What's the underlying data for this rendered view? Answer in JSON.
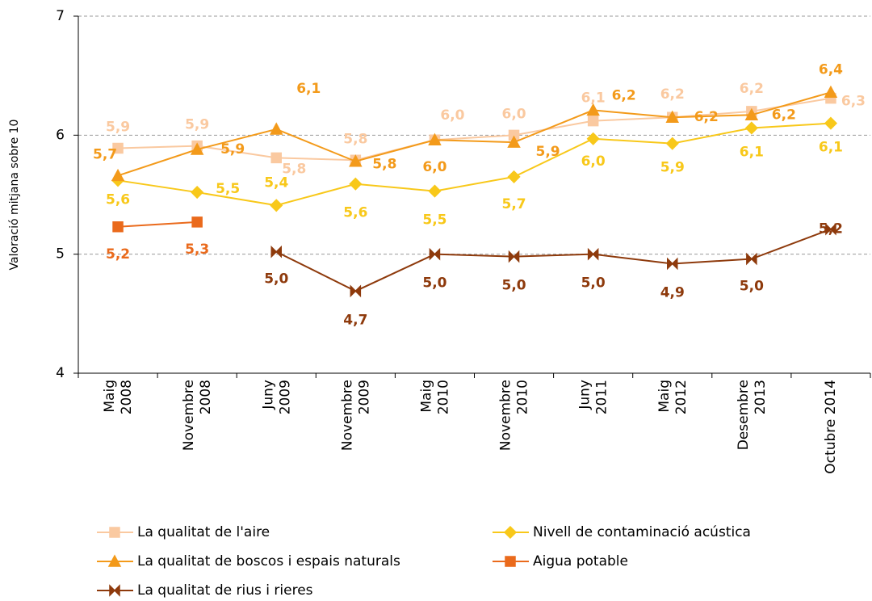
{
  "chart_data": {
    "type": "line",
    "y_label": "Valoració mitjana sobre 10",
    "categories": [
      "Maig\n2008",
      "Novembre\n2008",
      "Juny\n2009",
      "Novembre\n2009",
      "Maig\n2010",
      "Novembre\n2010",
      "Juny\n2011",
      "Maig\n2012",
      "Desembre\n2013",
      "Octubre 2014"
    ],
    "ylim": [
      4,
      7
    ],
    "yticks": [
      4,
      5,
      6,
      7
    ],
    "grid": true,
    "series": [
      {
        "name": "La qualitat de l'aire",
        "color": "#fac9a0",
        "marker": "square",
        "values": [
          5.89,
          5.91,
          5.81,
          5.79,
          5.96,
          6.0,
          6.12,
          6.15,
          6.2,
          6.31
        ],
        "value_labels": [
          "5,9",
          "5,9",
          "5,8",
          "5,8",
          "6,0",
          "6,0",
          "6,1",
          "6,2",
          "6,2",
          "6,3"
        ]
      },
      {
        "name": "Nivell de contaminació acústica",
        "color": "#f8c81a",
        "marker": "diamond",
        "values": [
          5.62,
          5.52,
          5.41,
          5.59,
          5.53,
          5.65,
          5.97,
          5.93,
          6.06,
          6.1
        ],
        "value_labels": [
          "5,6",
          "5,5",
          "5,4",
          "5,6",
          "5,5",
          "5,7",
          "6,0",
          "5,9",
          "6,1",
          "6,1"
        ]
      },
      {
        "name": "La qualitat de boscos i espais naturals",
        "color": "#f39a1a",
        "marker": "triangle",
        "values": [
          5.66,
          5.88,
          6.05,
          5.78,
          5.96,
          5.94,
          6.21,
          6.15,
          6.17,
          6.36
        ],
        "value_labels": [
          "5,7",
          "5,9",
          "6,1",
          "5,8",
          "6,0",
          "5,9",
          "6,2",
          "6,2",
          "6,2",
          "6,4"
        ]
      },
      {
        "name": "Aigua potable",
        "color": "#ea6a1c",
        "marker": "square",
        "values": [
          5.23,
          5.27,
          null,
          null,
          null,
          null,
          null,
          null,
          null,
          null
        ],
        "value_labels": [
          "5,2",
          "5,3",
          null,
          null,
          null,
          null,
          null,
          null,
          null,
          null
        ]
      },
      {
        "name": "La qualitat de rius i rieres",
        "color": "#8e3a0c",
        "marker": "bowtie",
        "values": [
          null,
          null,
          5.02,
          4.69,
          5.0,
          4.98,
          5.0,
          4.92,
          4.96,
          5.21
        ],
        "value_labels": [
          null,
          null,
          "5,0",
          "4,7",
          "5,0",
          "5,0",
          "5,0",
          "4,9",
          "5,0",
          "5,2"
        ]
      }
    ]
  }
}
